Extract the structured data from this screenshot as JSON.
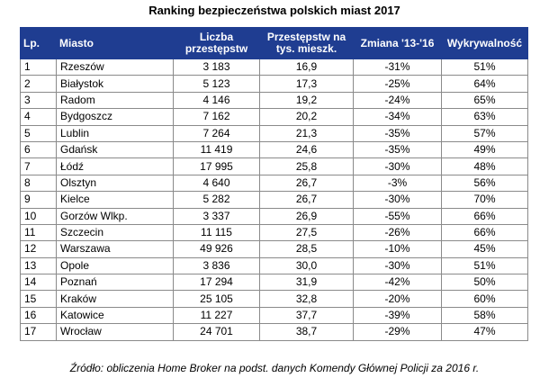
{
  "title": "Ranking bezpieczeństwa polskich miast 2017",
  "table": {
    "headers": {
      "lp": "Lp.",
      "miasto": "Miasto",
      "liczba_line1": "Liczba",
      "liczba_line2": "przestępstw",
      "tys_line1": "Przestępstw na",
      "tys_line2": "tys. mieszk.",
      "zmiana": "Zmiana '13-'16",
      "wykrywalnosc": "Wykrywalność"
    },
    "rows": [
      {
        "lp": "1",
        "miasto": "Rzeszów",
        "liczba": "3 183",
        "na_tys": "16,9",
        "zmiana": "-31%",
        "wykrywalnosc": "51%"
      },
      {
        "lp": "2",
        "miasto": "Białystok",
        "liczba": "5 123",
        "na_tys": "17,3",
        "zmiana": "-25%",
        "wykrywalnosc": "64%"
      },
      {
        "lp": "3",
        "miasto": "Radom",
        "liczba": "4 146",
        "na_tys": "19,2",
        "zmiana": "-24%",
        "wykrywalnosc": "65%"
      },
      {
        "lp": "4",
        "miasto": "Bydgoszcz",
        "liczba": "7 162",
        "na_tys": "20,2",
        "zmiana": "-34%",
        "wykrywalnosc": "63%"
      },
      {
        "lp": "5",
        "miasto": "Lublin",
        "liczba": "7 264",
        "na_tys": "21,3",
        "zmiana": "-35%",
        "wykrywalnosc": "57%"
      },
      {
        "lp": "6",
        "miasto": "Gdańsk",
        "liczba": "11 419",
        "na_tys": "24,6",
        "zmiana": "-35%",
        "wykrywalnosc": "49%"
      },
      {
        "lp": "7",
        "miasto": "Łódź",
        "liczba": "17 995",
        "na_tys": "25,8",
        "zmiana": "-30%",
        "wykrywalnosc": "48%"
      },
      {
        "lp": "8",
        "miasto": "Olsztyn",
        "liczba": "4 640",
        "na_tys": "26,7",
        "zmiana": "-3%",
        "wykrywalnosc": "56%"
      },
      {
        "lp": "9",
        "miasto": "Kielce",
        "liczba": "5 282",
        "na_tys": "26,7",
        "zmiana": "-30%",
        "wykrywalnosc": "70%"
      },
      {
        "lp": "10",
        "miasto": "Gorzów Wlkp.",
        "liczba": "3 337",
        "na_tys": "26,9",
        "zmiana": "-55%",
        "wykrywalnosc": "66%"
      },
      {
        "lp": "11",
        "miasto": "Szczecin",
        "liczba": "11 115",
        "na_tys": "27,5",
        "zmiana": "-26%",
        "wykrywalnosc": "66%"
      },
      {
        "lp": "12",
        "miasto": "Warszawa",
        "liczba": "49 926",
        "na_tys": "28,5",
        "zmiana": "-10%",
        "wykrywalnosc": "45%"
      },
      {
        "lp": "13",
        "miasto": "Opole",
        "liczba": "3 836",
        "na_tys": "30,0",
        "zmiana": "-30%",
        "wykrywalnosc": "51%"
      },
      {
        "lp": "14",
        "miasto": "Poznań",
        "liczba": "17 294",
        "na_tys": "31,9",
        "zmiana": "-42%",
        "wykrywalnosc": "50%"
      },
      {
        "lp": "15",
        "miasto": "Kraków",
        "liczba": "25 105",
        "na_tys": "32,8",
        "zmiana": "-20%",
        "wykrywalnosc": "60%"
      },
      {
        "lp": "16",
        "miasto": "Katowice",
        "liczba": "11 227",
        "na_tys": "37,7",
        "zmiana": "-39%",
        "wykrywalnosc": "58%"
      },
      {
        "lp": "17",
        "miasto": "Wrocław",
        "liczba": "24 701",
        "na_tys": "38,7",
        "zmiana": "-29%",
        "wykrywalnosc": "47%"
      }
    ]
  },
  "source": "Źródło: obliczenia Home Broker na podst. danych Komendy Głównej Policji za 2016 r.",
  "colors": {
    "header_bg": "#1f3d91",
    "header_text": "#ffffff",
    "border": "#8a8a8a"
  }
}
